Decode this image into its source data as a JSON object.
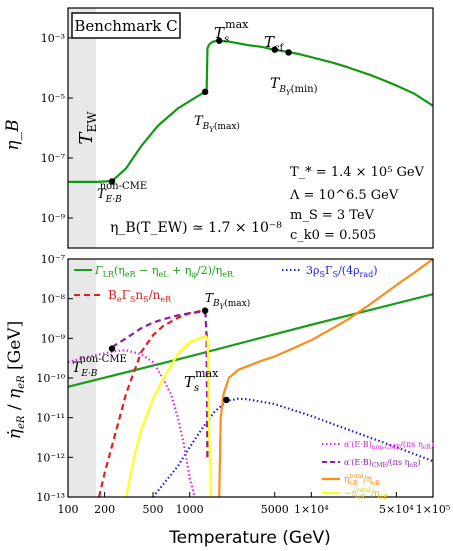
{
  "chart_data": [
    {
      "type": "line",
      "panel": "top",
      "ylabel": "η_B",
      "yscale": "log",
      "xscale": "log",
      "xlim": [
        100,
        100000
      ],
      "ylim": [
        1e-10,
        0.01
      ],
      "yticks": [
        {
          "v": 1e-09,
          "label": "10⁻⁹"
        },
        {
          "v": 1e-07,
          "label": "10⁻⁷"
        },
        {
          "v": 1e-05,
          "label": "10⁻⁵"
        },
        {
          "v": 0.001,
          "label": "10⁻³"
        }
      ],
      "benchmark_label": "Benchmark C",
      "ew_label": "T_EW",
      "ew_band": [
        100,
        160
      ],
      "series": [
        {
          "color": "#119911",
          "x": [
            100,
            170,
            230,
            300,
            400,
            550,
            800,
            1100,
            1300,
            1380,
            1400,
            1430,
            1470,
            1550,
            1700,
            1850,
            2100,
            3000,
            4000,
            5000,
            6000,
            8000,
            10000,
            15000,
            20000,
            30000,
            40000,
            50000,
            70000,
            100000
          ],
          "y": [
            1.6e-08,
            1.6e-08,
            1.7e-08,
            4.5e-08,
            2.5e-07,
            1.2e-06,
            4.5e-06,
            1e-05,
            1.5e-05,
            1.9e-05,
            0.00045,
            0.00056,
            0.00065,
            0.00075,
            0.00081,
            0.00079,
            0.00076,
            0.00058,
            0.0005,
            0.0004,
            0.00036,
            0.00029,
            0.00023,
            0.00015,
            0.000105,
            6e-05,
            3.8e-05,
            2.6e-05,
            1.4e-05,
            5.5e-06
          ]
        }
      ],
      "points": [
        {
          "x": 230,
          "y": 1.65e-08,
          "label": "T_{E·B}^{non-CME}"
        },
        {
          "x": 1340,
          "y": 1.6e-05,
          "label": "T_{B_Y(max)}"
        },
        {
          "x": 1750,
          "y": 0.00081,
          "label": "T_s^{max}"
        },
        {
          "x": 5000,
          "y": 0.00041,
          "label": "T_cf"
        },
        {
          "x": 6500,
          "y": 0.00033,
          "label": "T_{B_Y(min)}"
        }
      ],
      "annotations": {
        "ew_value": "η_B(T_EW) ≃ 1.7 × 10⁻⁸",
        "params": [
          "T_* = 1.4 × 10⁵ GeV",
          "Λ = 10^6.5 GeV",
          "m_S = 3 TeV",
          "c_k0 = 0.505"
        ]
      }
    },
    {
      "type": "line",
      "panel": "bottom",
      "ylabel": "η̇_eR / η_eR [GeV]",
      "xlabel": "Temperature (GeV)",
      "xscale": "log",
      "yscale": "log",
      "xlim": [
        100,
        100000
      ],
      "ylim": [
        1e-13,
        1e-07
      ],
      "xticks": [
        {
          "v": 100,
          "label": "100"
        },
        {
          "v": 200,
          "label": "200"
        },
        {
          "v": 500,
          "label": "500"
        },
        {
          "v": 1000,
          "label": "1000"
        },
        {
          "v": 5000,
          "label": "5000"
        },
        {
          "v": 10000,
          "label": "1×10⁴"
        },
        {
          "v": 50000,
          "label": "5×10⁴"
        },
        {
          "v": 100000,
          "label": "1×10⁵"
        }
      ],
      "yticks": [
        {
          "v": 1e-13,
          "label": "10⁻¹³"
        },
        {
          "v": 1e-12,
          "label": "10⁻¹²"
        },
        {
          "v": 1e-11,
          "label": "10⁻¹¹"
        },
        {
          "v": 1e-10,
          "label": "10⁻¹⁰"
        },
        {
          "v": 1e-09,
          "label": "10⁻⁹"
        },
        {
          "v": 1e-08,
          "label": "10⁻⁸"
        },
        {
          "v": 1e-07,
          "label": "10⁻⁷"
        }
      ],
      "ew_band": [
        100,
        160
      ],
      "series": [
        {
          "name": "Γ_LR(η_eR − η_eL + η_φ/2)/η_eR",
          "color": "#1a9e1a",
          "dash": "solid",
          "x": [
            100,
            1000,
            10000,
            100000
          ],
          "y": [
            6e-11,
            3.5e-10,
            2.2e-09,
            1.3e-08
          ]
        },
        {
          "name": "3ρ_S Γ_S/(4ρ_rad)",
          "color": "#1f1fd6",
          "dash": "dot",
          "x": [
            500,
            800,
            1000,
            1300,
            1600,
            2000,
            2500,
            3000,
            5000,
            10000,
            20000,
            50000,
            100000
          ],
          "y": [
            1e-13,
            6e-13,
            1.8e-12,
            6e-12,
            1.4e-11,
            2.6e-11,
            3e-11,
            2.9e-11,
            2.2e-11,
            1.1e-11,
            5e-12,
            1.8e-12,
            8e-13
          ]
        },
        {
          "name": "B_e Γ_S n_S/n_eR",
          "color": "#e01e1e",
          "dash": "dash",
          "x": [
            180,
            200,
            250,
            300,
            400,
            500,
            600,
            800,
            1000,
            1200,
            1300,
            1350,
            1380,
            1400
          ],
          "y": [
            1e-13,
            4e-13,
            5e-12,
            4e-11,
            4.5e-10,
            1.2e-09,
            2e-09,
            3.3e-09,
            4.3e-09,
            4.8e-09,
            5e-09,
            4e-09,
            1e-09,
            1e-12
          ]
        },
        {
          "name": "α′(E·B)_non-CME/(πs η_eR)",
          "color": "#e020e0",
          "dash": "dot",
          "x": [
            100,
            150,
            200,
            250,
            300,
            400,
            500,
            600,
            700,
            800,
            900,
            1000,
            1100
          ],
          "y": [
            2.5e-10,
            3.5e-10,
            4.2e-10,
            4.8e-10,
            5e-10,
            4e-10,
            2.5e-10,
            1e-10,
            4e-11,
            1e-11,
            2e-12,
            3e-13,
            1e-13
          ]
        },
        {
          "name": "α′(E·B)_CME/(πs η_eR)",
          "color": "#8a1ea8",
          "dash": "dash",
          "x": [
            230,
            300,
            400,
            500,
            600,
            800,
            1000,
            1200,
            1300,
            1350,
            1380,
            1400
          ],
          "y": [
            6e-10,
            1e-09,
            1.8e-09,
            2.5e-09,
            3e-09,
            3.8e-09,
            4.3e-09,
            4.6e-09,
            4.7e-09,
            4e-09,
            1e-09,
            1e-12
          ]
        },
        {
          "name": "η̇_eR^total/η_eR",
          "color": "#ff8c1a",
          "dash": "solid",
          "x": [
            1750,
            1800,
            1900,
            2100,
            2500,
            3000,
            4000,
            5000,
            7000,
            10000,
            15000,
            20000,
            30000,
            50000,
            70000,
            100000
          ],
          "y": [
            1e-13,
            1e-11,
            4e-11,
            1e-10,
            1.6e-10,
            2e-10,
            2.8e-10,
            3.5e-10,
            5.5e-10,
            9e-10,
            1.8e-09,
            3e-09,
            7e-09,
            2.2e-08,
            4.5e-08,
            1e-07
          ]
        },
        {
          "name": "−η̇_eR^total/η_eR",
          "color": "#ffff1a",
          "dash": "solid",
          "x": [
            300,
            350,
            400,
            500,
            600,
            700,
            800,
            1000,
            1200,
            1300,
            1350,
            1400,
            1420,
            1430,
            1450,
            1480,
            1500
          ],
          "y": [
            1e-13,
            1e-12,
            5e-12,
            3e-11,
            9e-11,
            2e-10,
            4e-10,
            8e-10,
            1e-09,
            1.1e-09,
            1.15e-09,
            1e-09,
            3e-10,
            3e-11,
            3e-12,
            5e-13,
            1e-13
          ]
        }
      ],
      "points": [
        {
          "x": 230,
          "y": 5.5e-10,
          "label": "T_{E·B}^{non-CME}"
        },
        {
          "x": 1340,
          "y": 5e-09,
          "label": "T_{B_Y(max)}"
        },
        {
          "x": 2000,
          "y": 2.8e-11,
          "label": "T_s^{max}"
        }
      ]
    }
  ]
}
